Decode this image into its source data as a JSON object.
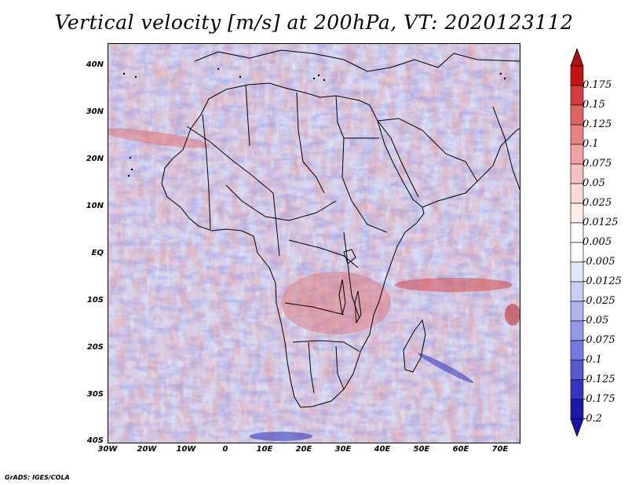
{
  "title": "Vertical velocity [m/s] at 200hPa, VT: 2020123112",
  "credit": "GrADS: IGES/COLA",
  "map": {
    "region": "Africa",
    "lat_labels": [
      "40N",
      "30N",
      "20N",
      "10N",
      "EQ",
      "10S",
      "20S",
      "30S",
      "40S"
    ],
    "lon_labels": [
      "30W",
      "20W",
      "10W",
      "0",
      "10E",
      "20E",
      "30E",
      "40E",
      "50E",
      "60E",
      "70E"
    ],
    "lon_range": [
      -30,
      75
    ],
    "lat_range": [
      -40,
      45
    ]
  },
  "colorbar": {
    "labels": [
      "0.175",
      "0.15",
      "0.125",
      "0.1",
      "0.075",
      "0.05",
      "0.025",
      "0.0125",
      "0.005",
      "-0.005",
      "-0.0125",
      "-0.025",
      "-0.05",
      "-0.075",
      "-0.1",
      "-0.125",
      "-0.175",
      "-0.2"
    ],
    "colors": [
      "#c21414",
      "#d43c3c",
      "#e06262",
      "#e98383",
      "#f0a3a3",
      "#f5c0c0",
      "#f9d9d9",
      "#fcebeb",
      "#ffffff",
      "#ffffff",
      "#e4e6fa",
      "#c9cdf4",
      "#aeb2ee",
      "#9297e6",
      "#7479dc",
      "#5559cf",
      "#3336bf",
      "#1a1aa8"
    ],
    "top_arrow_color": "#b00d0d",
    "bottom_arrow_color": "#1c14b0"
  }
}
